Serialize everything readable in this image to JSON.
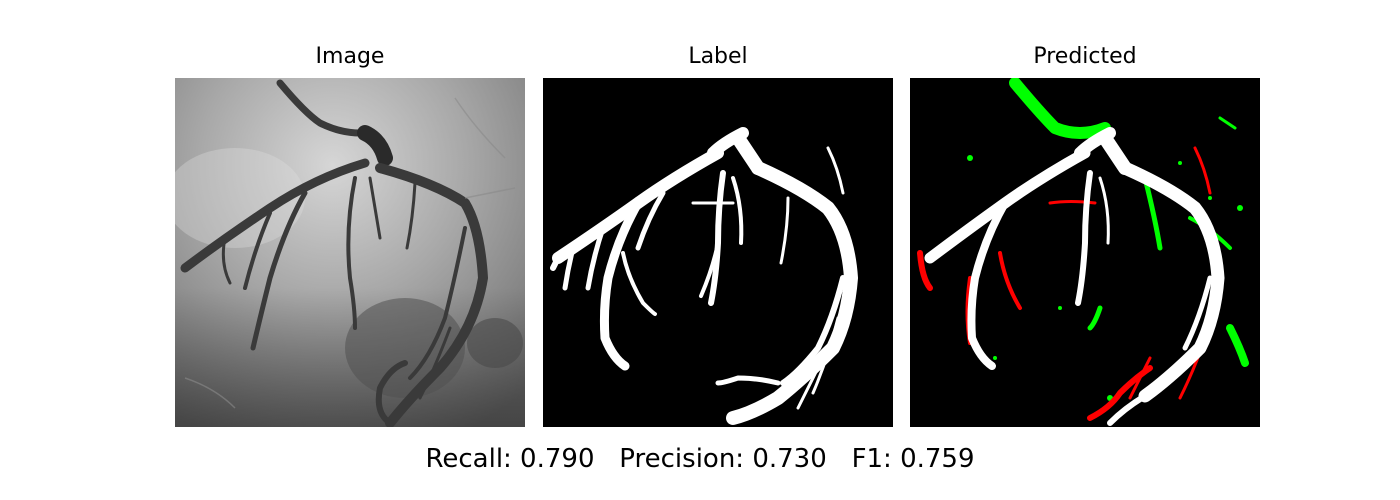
{
  "panels": [
    {
      "title": "Image"
    },
    {
      "title": "Label"
    },
    {
      "title": "Predicted"
    }
  ],
  "metrics": {
    "recall": "Recall: 0.790",
    "precision": "Precision: 0.730",
    "f1": "F1: 0.759"
  },
  "colors": {
    "background": "#ffffff",
    "mask_bg": "#000000",
    "true_positive": "#ffffff",
    "false_positive": "#00ff00",
    "false_negative": "#ff0000"
  }
}
